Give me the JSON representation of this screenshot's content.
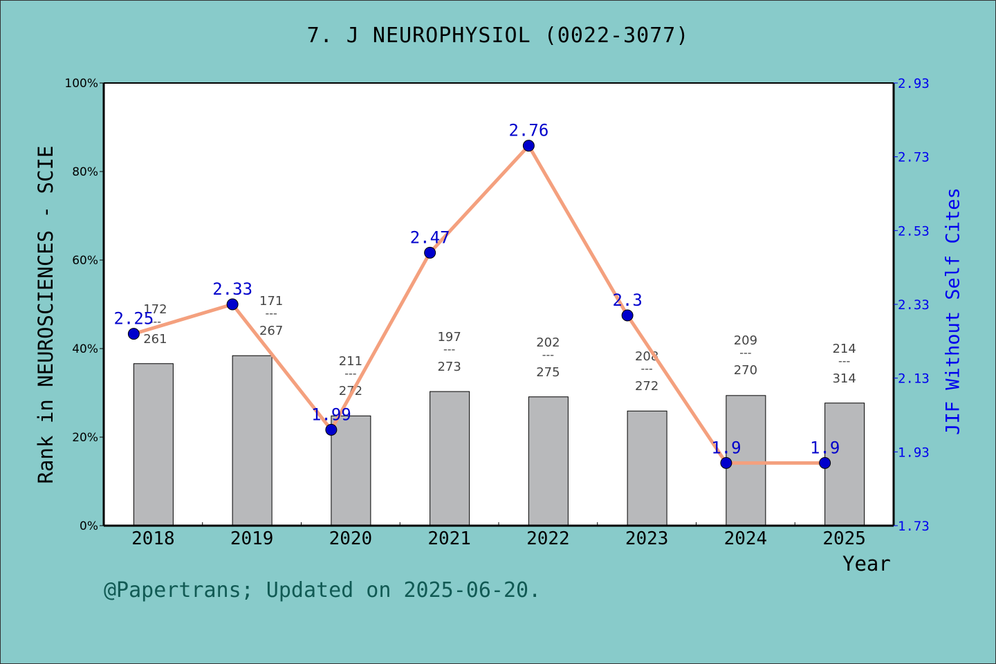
{
  "title": "7. J NEUROPHYSIOL (0022-3077)",
  "footer": "@Papertrans; Updated on 2025-06-20.",
  "axes": {
    "left_label": "Rank in NEUROSCIENCES - SCIE",
    "right_label": "JIF Without Self Cites",
    "x_label": "Year",
    "left_ticks": [
      "0%",
      "20%",
      "40%",
      "60%",
      "80%",
      "100%"
    ],
    "right_ticks": [
      "1.73",
      "1.93",
      "2.13",
      "2.33",
      "2.53",
      "2.73",
      "2.93"
    ]
  },
  "colors": {
    "background": "#88cbca",
    "bar_fill": "#b8b9bb",
    "line": "#f4a07e",
    "marker": "#0000cc",
    "jif_label": "#0000cc",
    "rank_label": "#444444",
    "footer": "#115a54",
    "right_axis": "#0000ee"
  },
  "chart_data": {
    "type": "bar+line",
    "title": "7. J NEUROPHYSIOL (0022-3077)",
    "xlabel": "Year",
    "ylabel": "Rank in NEUROSCIENCES - SCIE",
    "ylabel_right": "JIF Without Self Cites",
    "categories": [
      "2018",
      "2019",
      "2020",
      "2021",
      "2022",
      "2023",
      "2024",
      "2025"
    ],
    "ylim": [
      0,
      100
    ],
    "ylim_right": [
      1.73,
      2.93
    ],
    "series": [
      {
        "name": "Rank percentile",
        "type": "bar",
        "axis": "left",
        "values": [
          36.6,
          38.4,
          24.8,
          30.3,
          29.1,
          25.9,
          29.4,
          27.7
        ]
      },
      {
        "name": "JIF Without Self Cites",
        "type": "line",
        "axis": "right",
        "values": [
          2.25,
          2.33,
          1.99,
          2.47,
          2.76,
          2.3,
          1.9,
          1.9
        ]
      }
    ],
    "rank_labels": [
      {
        "rank": "172",
        "total": "261"
      },
      {
        "rank": "171",
        "total": "267"
      },
      {
        "rank": "211",
        "total": "272"
      },
      {
        "rank": "197",
        "total": "273"
      },
      {
        "rank": "202",
        "total": "275"
      },
      {
        "rank": "208",
        "total": "272"
      },
      {
        "rank": "209",
        "total": "270"
      },
      {
        "rank": "214",
        "total": "314"
      }
    ],
    "jif_labels": [
      "2.25",
      "2.33",
      "1.99",
      "2.47",
      "2.76",
      "2.3",
      "1.9",
      "1.9"
    ],
    "grid": false,
    "legend": "none"
  }
}
